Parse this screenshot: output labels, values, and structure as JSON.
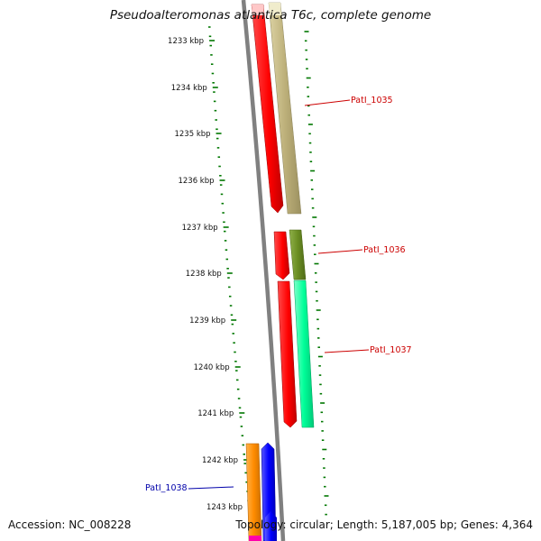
{
  "title": "Pseudoalteromonas atlantica T6c, complete genome",
  "accession": "Accession: NC_008228",
  "summary": "Topology: circular; Length: 5,187,005 bp; Genes: 4,364",
  "tick_labels": [
    "1233 kbp",
    "1234 kbp",
    "1235 kbp",
    "1236 kbp",
    "1237 kbp",
    "1238 kbp",
    "1239 kbp",
    "1240 kbp",
    "1241 kbp",
    "1242 kbp",
    "1243 kbp"
  ],
  "genes": [
    {
      "label": "PatI_1035",
      "color": "#cc0000"
    },
    {
      "label": "PatI_1036",
      "color": "#cc0000"
    },
    {
      "label": "PatI_1037",
      "color": "#cc0000"
    },
    {
      "label": "PatI_1038",
      "color": "#0000aa"
    }
  ],
  "colors": {
    "backbone": "#808080",
    "tick": "#007700",
    "red": "#ff0000",
    "khaki": "#bdb07a",
    "olive": "#6b8e23",
    "spring_green": "#00ff99",
    "orange": "#ff8c00",
    "blue": "#0000ff",
    "magenta": "#ff00aa"
  }
}
